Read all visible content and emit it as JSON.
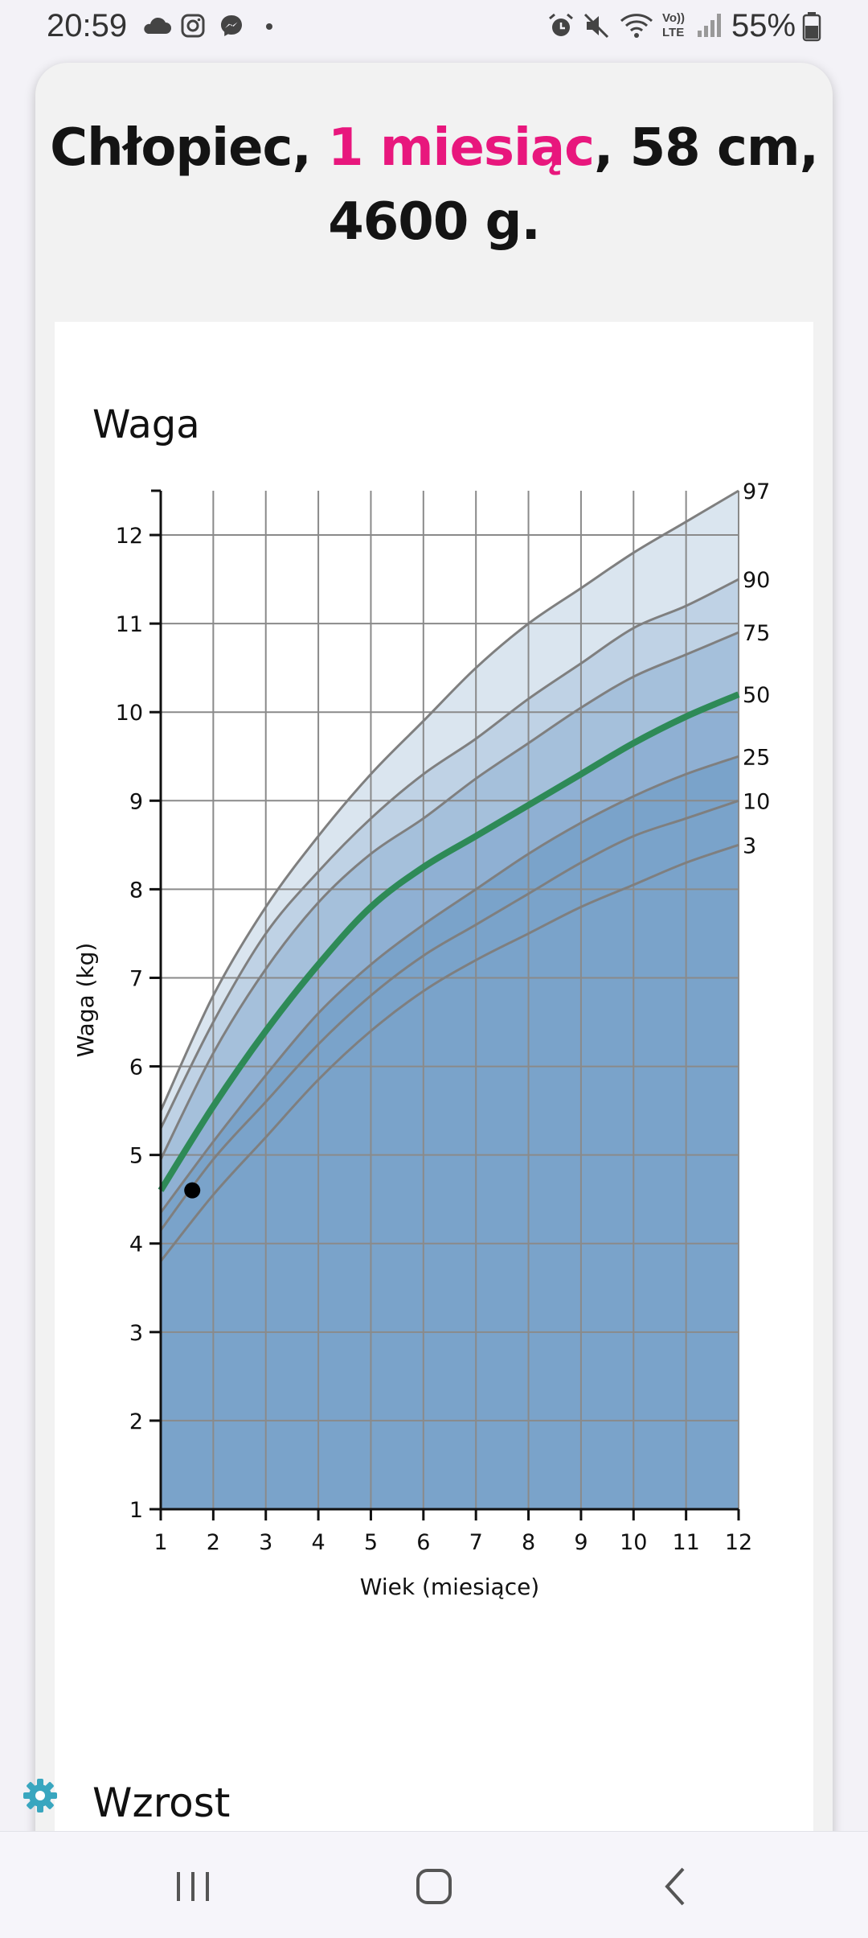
{
  "status_bar": {
    "time": "20:59",
    "battery": "55%",
    "left_icons": [
      "cloud-icon",
      "instagram-icon",
      "messenger-icon",
      "dot-icon"
    ],
    "right_icons": [
      "alarm-icon",
      "mute-icon",
      "wifi-icon",
      "volte-icon",
      "signal-icon",
      "battery-icon"
    ],
    "volte_label": "Vo)) LTE"
  },
  "header": {
    "prefix": "Chłopiec,",
    "age": "1 miesiąc",
    "suffix_line1": ", 58 cm,",
    "line2": "4600 g.",
    "accent_color": "#e8177d"
  },
  "chart_title": "Waga",
  "next_section_title": "Wzrost",
  "chart_data": {
    "type": "line",
    "title": "Waga",
    "xlabel": "Wiek (miesiące)",
    "ylabel": "Waga (kg)",
    "xlim": [
      1,
      12
    ],
    "ylim": [
      1,
      12.5
    ],
    "x_ticks": [
      1,
      2,
      3,
      4,
      5,
      6,
      7,
      8,
      9,
      10,
      11,
      12
    ],
    "y_ticks": [
      1,
      2,
      3,
      4,
      5,
      6,
      7,
      8,
      9,
      10,
      11,
      12
    ],
    "grid": true,
    "x": [
      1,
      2,
      3,
      4,
      5,
      6,
      7,
      8,
      9,
      10,
      11,
      12
    ],
    "series": [
      {
        "name": "97",
        "values": [
          5.5,
          6.8,
          7.8,
          8.6,
          9.3,
          9.9,
          10.5,
          11.0,
          11.4,
          11.8,
          12.15,
          12.5
        ]
      },
      {
        "name": "90",
        "values": [
          5.3,
          6.5,
          7.5,
          8.2,
          8.8,
          9.3,
          9.7,
          10.15,
          10.55,
          10.95,
          11.2,
          11.5
        ]
      },
      {
        "name": "75",
        "values": [
          4.95,
          6.15,
          7.1,
          7.85,
          8.4,
          8.8,
          9.25,
          9.65,
          10.05,
          10.4,
          10.65,
          10.9
        ]
      },
      {
        "name": "50",
        "values": [
          4.6,
          5.55,
          6.4,
          7.15,
          7.8,
          8.25,
          8.6,
          8.95,
          9.3,
          9.65,
          9.95,
          10.2
        ]
      },
      {
        "name": "25",
        "values": [
          4.35,
          5.15,
          5.9,
          6.6,
          7.15,
          7.6,
          8.0,
          8.4,
          8.75,
          9.05,
          9.3,
          9.5
        ]
      },
      {
        "name": "10",
        "values": [
          4.15,
          4.95,
          5.6,
          6.25,
          6.8,
          7.25,
          7.6,
          7.95,
          8.3,
          8.6,
          8.8,
          9.0
        ]
      },
      {
        "name": "3",
        "values": [
          3.8,
          4.55,
          5.2,
          5.85,
          6.4,
          6.85,
          7.2,
          7.5,
          7.8,
          8.05,
          8.3,
          8.5
        ]
      }
    ],
    "highlight_series": "50",
    "highlight_color": "#2e8a57",
    "band_colors": [
      "#dae5ef",
      "#bfd2e5",
      "#a5c0db",
      "#8fb0d3",
      "#7aa3ca"
    ],
    "points": [
      {
        "x": 1.6,
        "y": 4.6
      }
    ]
  },
  "nav_bar": {
    "buttons": [
      "recents-icon",
      "home-icon",
      "back-icon"
    ]
  }
}
